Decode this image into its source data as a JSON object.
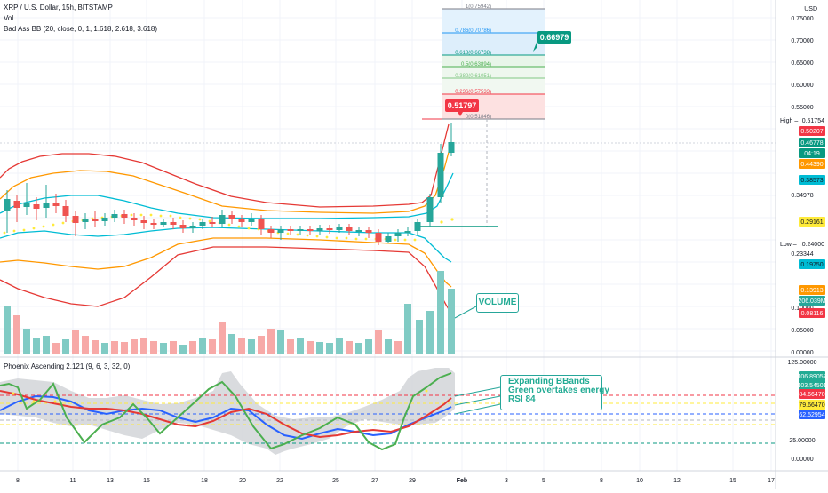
{
  "legend": {
    "title": "XRP / U.S. Dollar, 15h, BITSTAMP",
    "vol": "Vol",
    "bb": "Bad Ass BB (20, close, 0, 1, 1.618, 2.618, 3.618)",
    "osc": "Phoenix Ascending 2.121 (9, 6, 3, 32, 0)"
  },
  "axis": {
    "currency": "USD",
    "price_ticks": [
      "0.75000",
      "0.70000",
      "0.65000",
      "0.60000",
      "0.55000",
      "0.34978",
      "0.23344",
      "0.10000",
      "0.05000",
      "0.00000"
    ],
    "osc_ticks": [
      "125.00000",
      "25.00000",
      "0.00000"
    ],
    "time_ticks": [
      "8",
      "11",
      "13",
      "15",
      "18",
      "20",
      "22",
      "25",
      "27",
      "29",
      "Feb",
      "3",
      "5",
      "8",
      "10",
      "12",
      "15",
      "17"
    ]
  },
  "price_tags": [
    {
      "label": "High",
      "value": "0.51754",
      "type": "plain",
      "color": "#131722"
    },
    {
      "label": "",
      "value": "0.50207",
      "type": "tag",
      "color": "#f23645"
    },
    {
      "label": "",
      "value": "0.46778",
      "type": "tag",
      "color": "#089981"
    },
    {
      "label": "",
      "value": "04:19",
      "type": "tag",
      "color": "#089981"
    },
    {
      "label": "",
      "value": "0.44390",
      "type": "tag",
      "color": "#ff9800"
    },
    {
      "label": "",
      "value": "0.38573",
      "type": "tag",
      "color": "#00bcd4"
    },
    {
      "label": "",
      "value": "0.29161",
      "type": "tag",
      "color": "#ffeb3b"
    },
    {
      "label": "Low",
      "value": "0.24000",
      "type": "plain",
      "color": "#131722"
    },
    {
      "label": "",
      "value": "0.19750",
      "type": "tag",
      "color": "#00bcd4"
    },
    {
      "label": "",
      "value": "0.13913",
      "type": "tag",
      "color": "#ff9800"
    },
    {
      "label": "",
      "value": "206.039M",
      "type": "tag",
      "color": "#26a69a"
    },
    {
      "label": "",
      "value": "0.08116",
      "type": "tag",
      "color": "#f23645"
    }
  ],
  "osc_tags": [
    {
      "value": "106.89057",
      "color": "#22ab94"
    },
    {
      "value": "103.54501",
      "color": "#22ab94"
    },
    {
      "value": "84.66470",
      "color": "#f23645"
    },
    {
      "value": "79.66470",
      "color": "#ffeb3b"
    },
    {
      "value": "62.52954",
      "color": "#2962ff"
    }
  ],
  "fib": [
    {
      "label": "1(0.75942)",
      "color": "#787b86"
    },
    {
      "label": "0.786(0.70786)",
      "color": "#2196f3"
    },
    {
      "label": "0.618(0.66738)",
      "color": "#089981"
    },
    {
      "label": "0.5(0.63894)",
      "color": "#4caf50"
    },
    {
      "label": "0.382(0.61051)",
      "color": "#81c784"
    },
    {
      "label": "0.236(0.57533)",
      "color": "#f23645"
    },
    {
      "label": "0(0.51846)",
      "color": "#787b86"
    }
  ],
  "callouts": {
    "red_tag": "0.51797",
    "green_tag": "0.66979",
    "volume": "VOLUME",
    "ann1": "Expanding BBands",
    "ann2": "Green overtakes energy",
    "ann3": "RSI 84"
  },
  "colors": {
    "up": "#26a69a",
    "down": "#ef5350",
    "bb_outer": "#e53935",
    "bb_mid": "#ff9800",
    "bb_inner": "#00bcd4",
    "basis": "#ffeb3b"
  }
}
